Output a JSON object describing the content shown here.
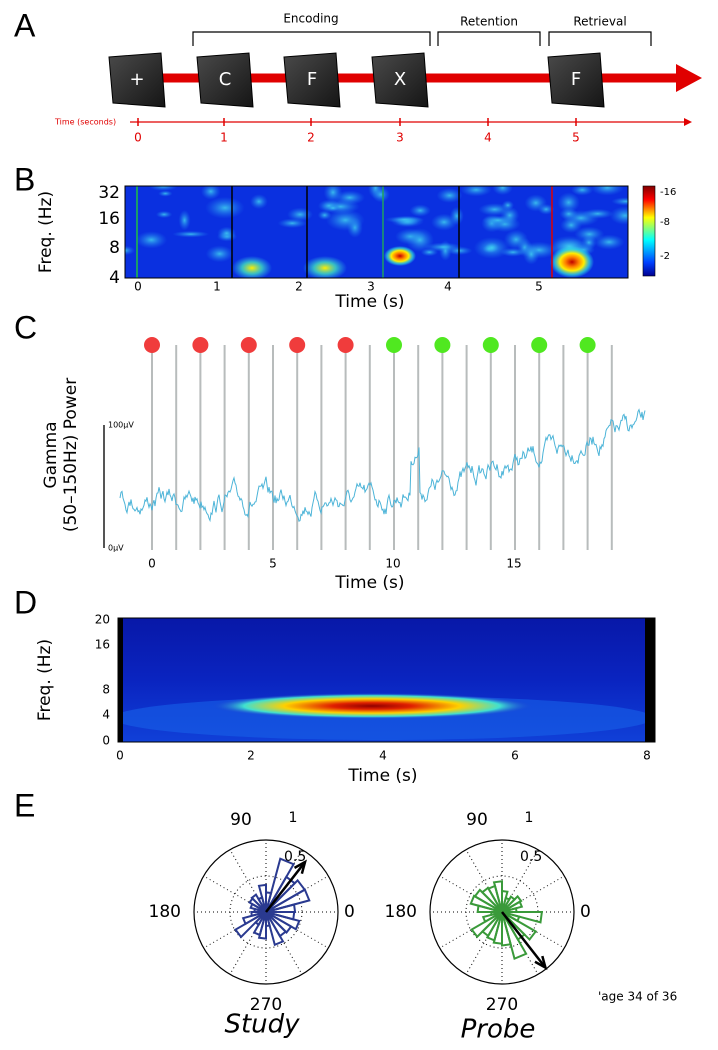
{
  "panels": {
    "a": {
      "letter": "A",
      "cards": [
        "+",
        "C",
        "F",
        "X",
        "F"
      ],
      "phases": [
        "Encoding",
        "Retention",
        "Retrieval"
      ],
      "timeline_label": "Time (seconds)",
      "ticks": [
        "0",
        "1",
        "2",
        "3",
        "4",
        "5"
      ]
    },
    "b": {
      "letter": "B",
      "y_label": "Freq. (Hz)",
      "y_ticks": [
        "32",
        "16",
        "8",
        "4"
      ],
      "x_ticks": [
        "0",
        "1",
        "2",
        "3",
        "4",
        "5"
      ],
      "x_label": "Time (s)",
      "colorbar_ticks": [
        "-16",
        "-8",
        "-2"
      ]
    },
    "c": {
      "letter": "C",
      "y_label": [
        "Gamma",
        "(50–150Hz) Power"
      ],
      "scale_top": "100µV",
      "scale_bottom": "0µV",
      "x_ticks": [
        "0",
        "5",
        "10",
        "15"
      ],
      "x_label": "Time (s)"
    },
    "d": {
      "letter": "D",
      "y_label": "Freq. (Hz)",
      "y_ticks": [
        "20",
        "16",
        "8",
        "4",
        "0"
      ],
      "x_ticks": [
        "0",
        "2",
        "4",
        "6",
        "8"
      ],
      "x_label": "Time (s)"
    },
    "e": {
      "letter": "E",
      "plots": [
        {
          "name": "Study",
          "angle_labels": [
            "90",
            "180",
            "0",
            "270"
          ],
          "radius_labels": [
            "1",
            "0.5"
          ]
        },
        {
          "name": "Probe",
          "angle_labels": [
            "90",
            "180",
            "0",
            "270"
          ],
          "radius_labels": [
            "1",
            "0.5"
          ]
        }
      ],
      "page": "'age 34 of 36"
    }
  }
}
